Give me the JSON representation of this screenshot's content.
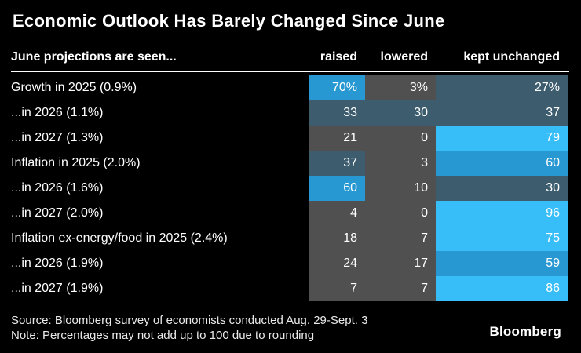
{
  "title": "Economic Outlook Has Barely Changed Since June",
  "header": {
    "label": "June projections are seen...",
    "columns": [
      "raised",
      "lowered",
      "kept unchanged"
    ]
  },
  "palette": {
    "background": "#000000",
    "text": "#ffffff",
    "gray": "#505050",
    "slate_blue": "#3d5d6f",
    "medium_blue": "#2898d2",
    "bright_blue": "#37bdf7"
  },
  "rows": [
    {
      "label": "Growth in 2025 (0.9%)",
      "values": [
        "70%",
        "3%",
        "27%"
      ],
      "cell_colors": [
        "#2898d2",
        "#505050",
        "#3d5d6f"
      ]
    },
    {
      "label": "...in 2026 (1.1%)",
      "values": [
        "33",
        "30",
        "37"
      ],
      "cell_colors": [
        "#3d5d6f",
        "#3d5d6f",
        "#3d5d6f"
      ]
    },
    {
      "label": "...in 2027 (1.3%)",
      "values": [
        "21",
        "0",
        "79"
      ],
      "cell_colors": [
        "#505050",
        "#505050",
        "#37bdf7"
      ]
    },
    {
      "label": "Inflation in 2025 (2.0%)",
      "values": [
        "37",
        "3",
        "60"
      ],
      "cell_colors": [
        "#3d5d6f",
        "#505050",
        "#2898d2"
      ]
    },
    {
      "label": "...in 2026 (1.6%)",
      "values": [
        "60",
        "10",
        "30"
      ],
      "cell_colors": [
        "#2898d2",
        "#505050",
        "#3d5d6f"
      ]
    },
    {
      "label": "...in 2027 (2.0%)",
      "values": [
        "4",
        "0",
        "96"
      ],
      "cell_colors": [
        "#505050",
        "#505050",
        "#37bdf7"
      ]
    },
    {
      "label": "Inflation ex-energy/food in 2025 (2.4%)",
      "values": [
        "18",
        "7",
        "75"
      ],
      "cell_colors": [
        "#505050",
        "#505050",
        "#37bdf7"
      ]
    },
    {
      "label": "...in 2026 (1.9%)",
      "values": [
        "24",
        "17",
        "59"
      ],
      "cell_colors": [
        "#505050",
        "#505050",
        "#2898d2"
      ]
    },
    {
      "label": "...in 2027 (1.9%)",
      "values": [
        "7",
        "7",
        "86"
      ],
      "cell_colors": [
        "#505050",
        "#505050",
        "#37bdf7"
      ]
    }
  ],
  "footer": {
    "source": "Source: Bloomberg survey of economists conducted Aug. 29-Sept. 3",
    "note": "Note: Percentages may not add up to 100 due to rounding",
    "logo": "Bloomberg"
  },
  "chart_data": {
    "type": "heatmap",
    "title": "Economic Outlook Has Barely Changed Since June",
    "row_axis_label": "June projections are seen...",
    "columns": [
      "raised",
      "lowered",
      "kept unchanged"
    ],
    "rows": [
      "Growth in 2025 (0.9%)",
      "...in 2026 (1.1%)",
      "...in 2027 (1.3%)",
      "Inflation in 2025 (2.0%)",
      "...in 2026 (1.6%)",
      "...in 2027 (2.0%)",
      "Inflation ex-energy/food in 2025 (2.4%)",
      "...in 2026 (1.9%)",
      "...in 2027 (1.9%)"
    ],
    "values": [
      [
        70,
        3,
        27
      ],
      [
        33,
        30,
        37
      ],
      [
        21,
        0,
        79
      ],
      [
        37,
        3,
        60
      ],
      [
        60,
        10,
        30
      ],
      [
        4,
        0,
        96
      ],
      [
        18,
        7,
        75
      ],
      [
        24,
        17,
        59
      ],
      [
        7,
        7,
        86
      ]
    ],
    "unit": "%",
    "value_range": [
      0,
      100
    ],
    "legend_position": "none",
    "grid": false,
    "color_scale": [
      {
        "range": "0-24",
        "color": "#505050"
      },
      {
        "range": "25-45",
        "color": "#3d5d6f"
      },
      {
        "range": "46-70",
        "color": "#2898d2"
      },
      {
        "range": "71-100",
        "color": "#37bdf7"
      }
    ]
  }
}
